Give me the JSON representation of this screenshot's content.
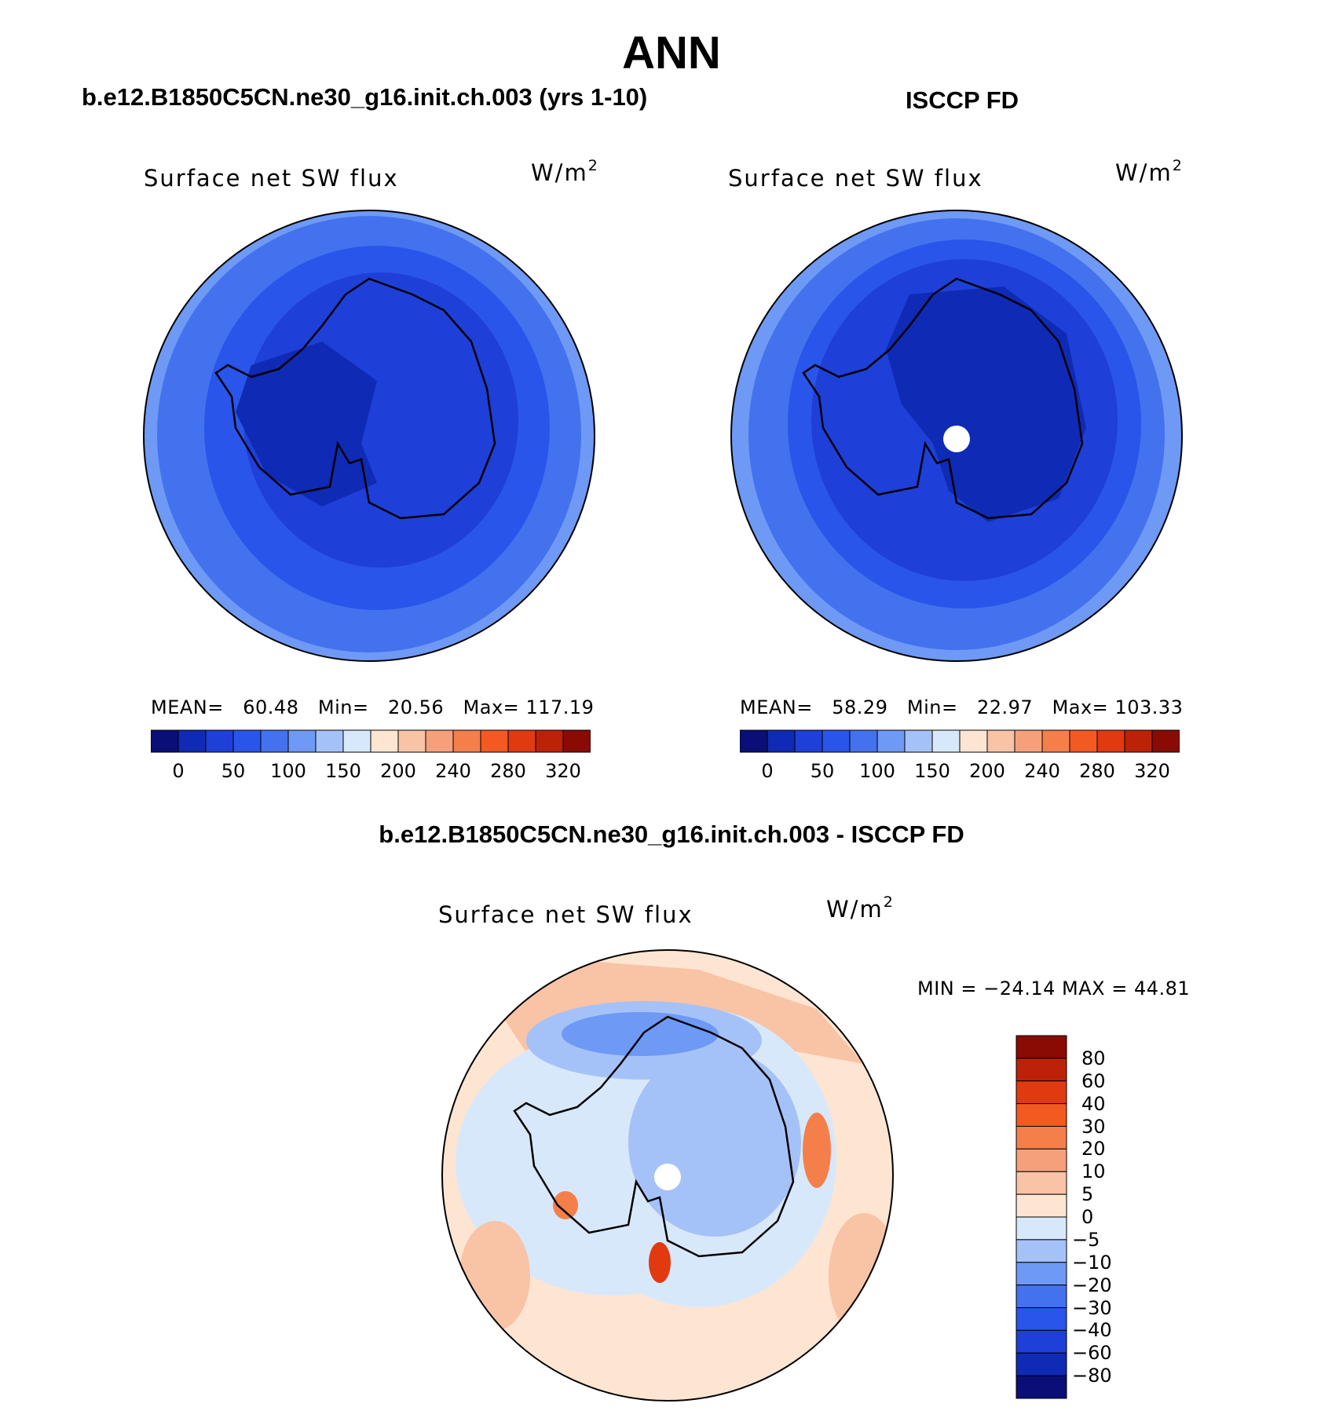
{
  "title": "ANN",
  "colors": {
    "blue_levels": [
      "#0a0f78",
      "#0f2ab4",
      "#1e3fd8",
      "#2a55ea",
      "#4472ee",
      "#6e99f5",
      "#a5c2f8",
      "#d8e8fb"
    ],
    "warm_levels": [
      "#fde5d2",
      "#f9c3a6",
      "#f6a07b",
      "#f57f4b",
      "#f35a22",
      "#e23a10",
      "#bd2208",
      "#8a0a04"
    ],
    "land_outline": "#000000"
  },
  "panels": {
    "model": {
      "case_title": "b.e12.B1850C5CN.ne30_g16.init.ch.003 (yrs 1-10)",
      "variable": "Surface net SW flux",
      "units_base": "W/m",
      "units_exp": "2",
      "stats": {
        "mean_label": "MEAN=",
        "mean": "60.48",
        "min_label": "Min=",
        "min": "20.56",
        "max_label": "Max=",
        "max": "117.19"
      }
    },
    "obs": {
      "case_title": "ISCCP FD",
      "variable": "Surface net SW flux",
      "units_base": "W/m",
      "units_exp": "2",
      "stats": {
        "mean_label": "MEAN=",
        "mean": "58.29",
        "min_label": "Min=",
        "min": "22.97",
        "max_label": "Max=",
        "max": "103.33"
      }
    },
    "diff": {
      "case_title": "b.e12.B1850C5CN.ne30_g16.init.ch.003 - ISCCP FD",
      "variable": "Surface net SW flux",
      "units_base": "W/m",
      "units_exp": "2",
      "minmax": "MIN = −24.14 MAX =  44.81"
    }
  },
  "colorbar_main": {
    "tick_labels": [
      "0",
      "50",
      "100",
      "150",
      "200",
      "240",
      "280",
      "320"
    ]
  },
  "colorbar_diff": {
    "tick_labels": [
      "80",
      "60",
      "40",
      "30",
      "20",
      "10",
      "5",
      "0",
      "−5",
      "−10",
      "−20",
      "−30",
      "−40",
      "−60",
      "−80"
    ],
    "colors": [
      "#8a0a04",
      "#bd2208",
      "#e23a10",
      "#f35a22",
      "#f57f4b",
      "#f6a07b",
      "#f9c3a6",
      "#fde5d2",
      "#d8e8fb",
      "#a5c2f8",
      "#6e99f5",
      "#4472ee",
      "#2a55ea",
      "#1e3fd8",
      "#0f2ab4",
      "#0a0f78"
    ]
  }
}
